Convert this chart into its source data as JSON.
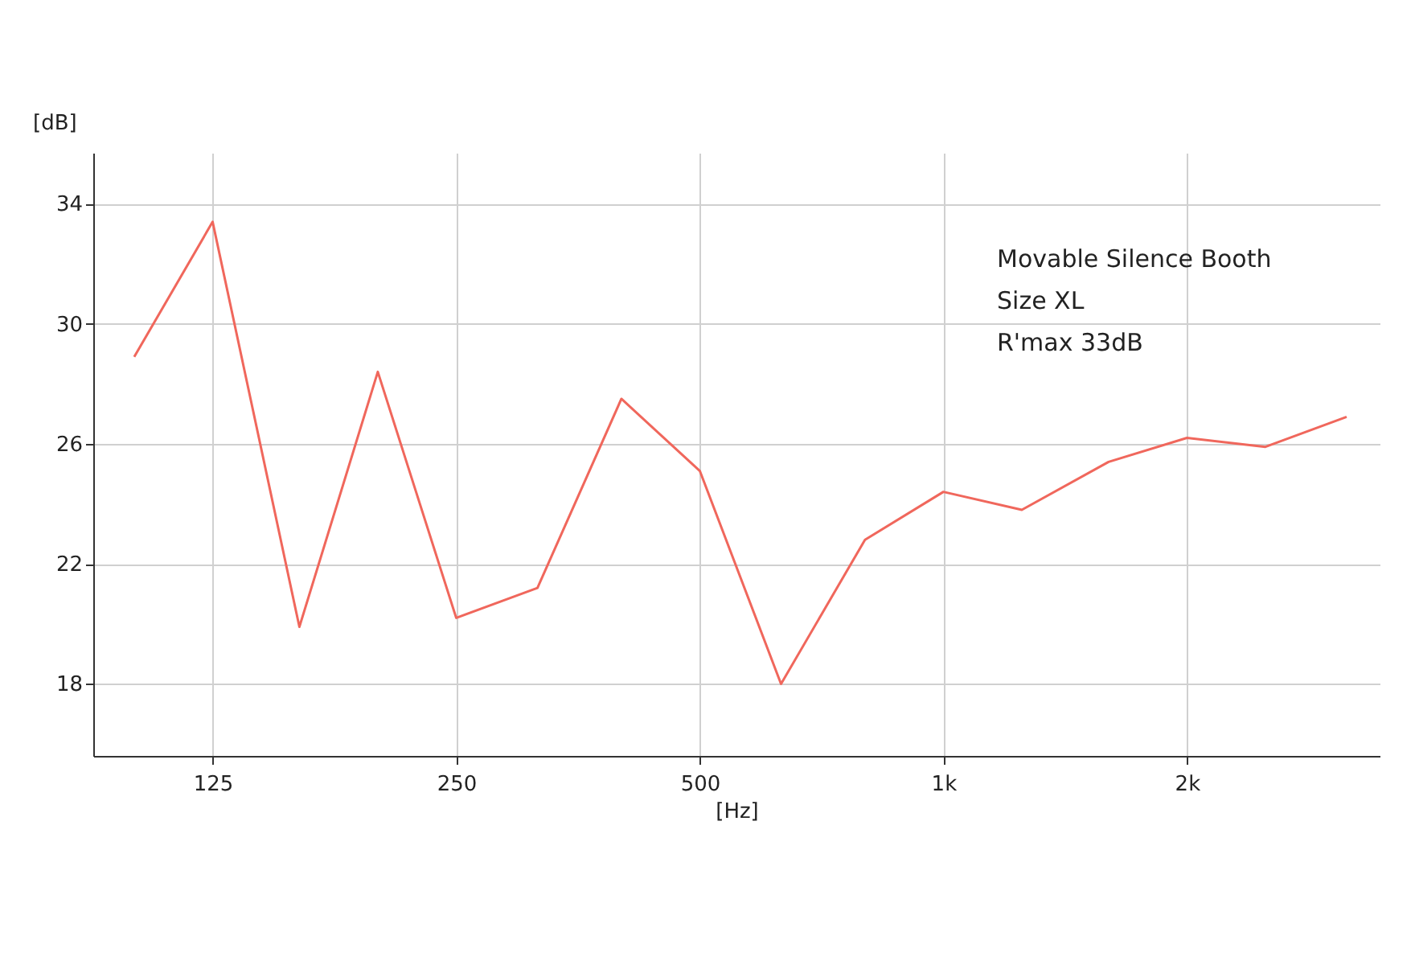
{
  "chart_data": {
    "type": "line",
    "x": [
      100,
      125,
      160,
      200,
      250,
      315,
      400,
      500,
      630,
      800,
      1000,
      1250,
      1600,
      2000,
      2500,
      3150
    ],
    "series": [
      {
        "color": "#f0675c",
        "values": [
          28.9,
          33.4,
          19.9,
          28.4,
          20.2,
          21.2,
          27.5,
          25.1,
          18.0,
          22.8,
          24.4,
          23.8,
          25.4,
          26.2,
          25.9,
          26.9
        ]
      }
    ],
    "log": "x",
    "xlim": [
      89,
      3460
    ],
    "xticks": [
      125,
      250,
      500,
      {
        "value": 1000,
        "label": "1k"
      },
      {
        "value": 2000,
        "label": "2k"
      }
    ],
    "ylim": [
      15.6,
      35.7
    ],
    "yticks": [
      18,
      22,
      26,
      30,
      34
    ],
    "xlabel": "[Hz]",
    "ylabel": "[dB]",
    "grid": true,
    "marker": "none",
    "line_style": "solid",
    "annotations": [
      "Movable Silence Booth",
      "Size XL",
      "R'max 33dB"
    ]
  }
}
